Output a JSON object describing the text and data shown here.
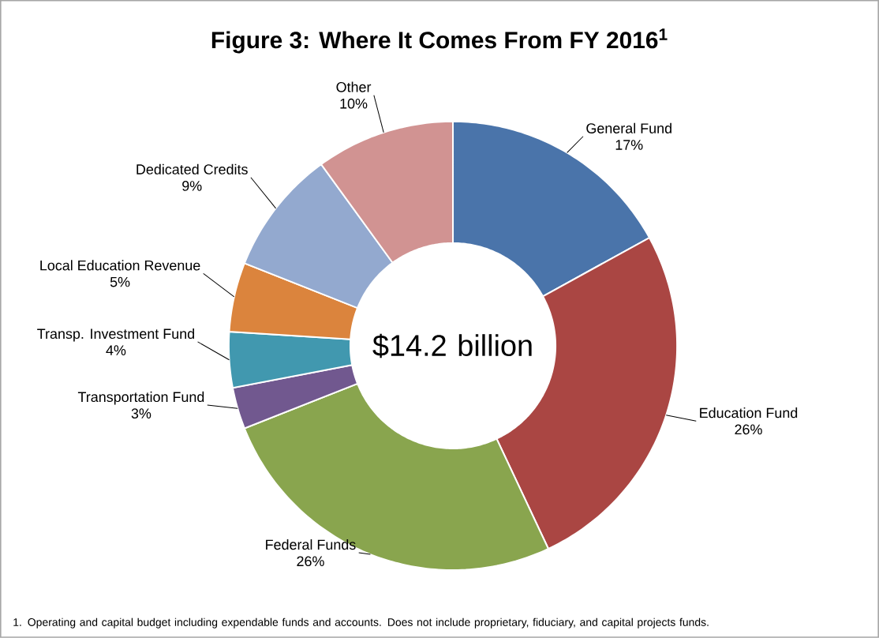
{
  "chart_data": {
    "type": "donut",
    "title": "Figure 3: Where It Comes From FY 2016$^{1}$",
    "categories": [
      "General Fund",
      "Education Fund",
      "Federal Funds",
      "Transportation Fund",
      "Transp. Investment Fund",
      "Local Education Revenue",
      "Dedicated Credits",
      "Other"
    ],
    "values": [
      17,
      26,
      26,
      3,
      4,
      5,
      9,
      10
    ],
    "value_labels": [
      "17%",
      "26%",
      "26%",
      "3%",
      "4%",
      "5%",
      "9%",
      "10%"
    ],
    "colors": [
      "#4a74aa",
      "#aa4643",
      "#89a54e",
      "#71588f",
      "#4198af",
      "#db843d",
      "#93a9cf",
      "#d19392"
    ],
    "annotations": [
      "$14.2 billion",
      "1. Operating and capital budget including expendable funds and accounts.  Does not include proprietary, fiduciary, and capital projects funds."
    ]
  }
}
